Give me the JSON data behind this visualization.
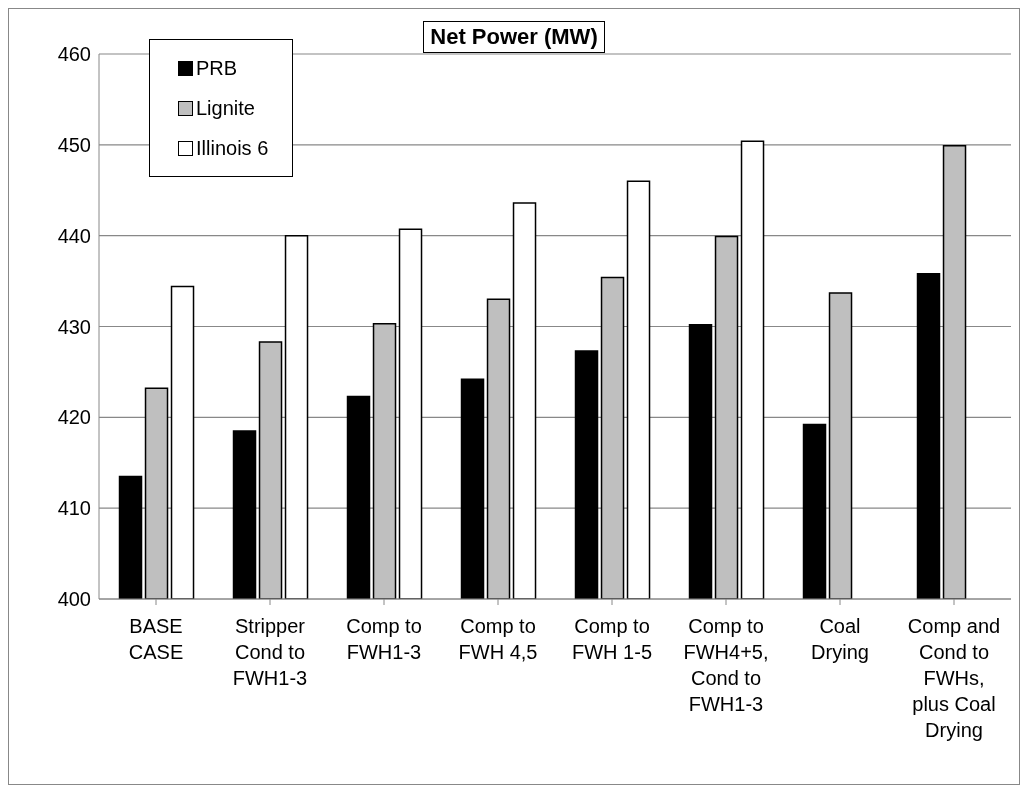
{
  "chart_data": {
    "type": "bar",
    "title": "Net Power (MW)",
    "categories": [
      "BASE\nCASE",
      "Stripper\nCond to\nFWH1-3",
      "Comp to\nFWH1-3",
      "Comp to\nFWH 4,5",
      "Comp to\nFWH 1-5",
      "Comp to\nFWH4+5,\nCond to\nFWH1-3",
      "Coal\nDrying",
      "Comp and\nCond to\nFWHs,\nplus Coal\nDrying"
    ],
    "series": [
      {
        "name": "PRB",
        "color": "#000000",
        "values": [
          413.5,
          418.5,
          422.3,
          424.2,
          427.3,
          430.2,
          419.2,
          435.8
        ]
      },
      {
        "name": "Lignite",
        "color": "#bfbfbf",
        "values": [
          423.2,
          428.3,
          430.3,
          433.0,
          435.4,
          439.9,
          433.7,
          449.9
        ]
      },
      {
        "name": "Illinois 6",
        "color": "#ffffff",
        "values": [
          434.4,
          440.0,
          440.7,
          443.6,
          446.0,
          450.4,
          null,
          null
        ]
      }
    ],
    "ylim": [
      400,
      460
    ],
    "yticks": [
      400,
      410,
      420,
      430,
      440,
      450,
      460
    ],
    "grid": "y",
    "legend": "top left"
  }
}
